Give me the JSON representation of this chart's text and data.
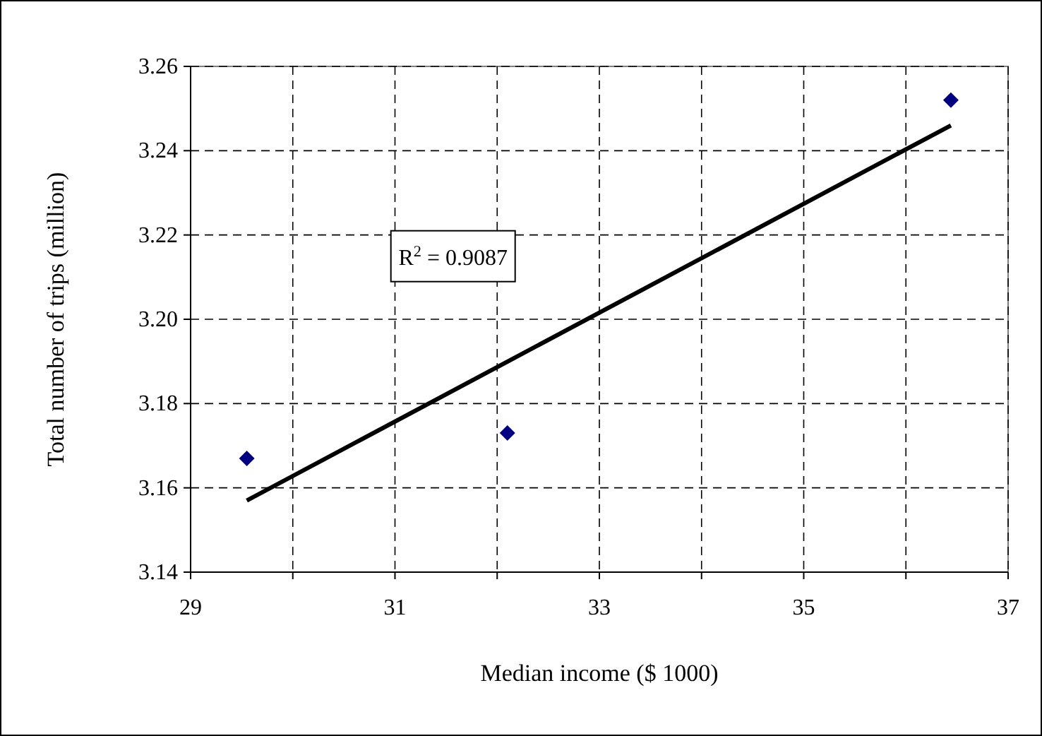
{
  "chart_data": {
    "type": "scatter",
    "xlabel": "Median income ($ 1000)",
    "ylabel": "Total number of trips (million)",
    "x": [
      29.55,
      32.1,
      36.44
    ],
    "series": [
      {
        "color": "#000080",
        "marker": "diamond",
        "values": [
          3.167,
          3.173,
          3.252
        ]
      },
      {
        "type": "line",
        "color": "#000000",
        "marker": "none",
        "x": [
          29.55,
          36.44
        ],
        "values": [
          3.157,
          3.246
        ]
      }
    ],
    "xlim": [
      29,
      37
    ],
    "xticks": [
      29,
      {
        "value": 30,
        "label": null
      },
      31,
      {
        "value": 32,
        "label": null
      },
      33,
      {
        "value": 34,
        "label": null
      },
      35,
      {
        "value": 36,
        "label": null
      },
      37
    ],
    "ylim": [
      3.14,
      3.26
    ],
    "yticks": [
      {
        "value": 3.14,
        "label": "3.14"
      },
      {
        "value": 3.16,
        "label": "3.16"
      },
      {
        "value": 3.18,
        "label": "3.18"
      },
      {
        "value": 3.2,
        "label": "3.20"
      },
      {
        "value": 3.22,
        "label": "3.22"
      },
      {
        "value": 3.24,
        "label": "3.24"
      },
      {
        "value": 3.26,
        "label": "3.26"
      }
    ],
    "annotations": [
      "R$^{2}$ = 0.9087"
    ],
    "grid": true
  }
}
